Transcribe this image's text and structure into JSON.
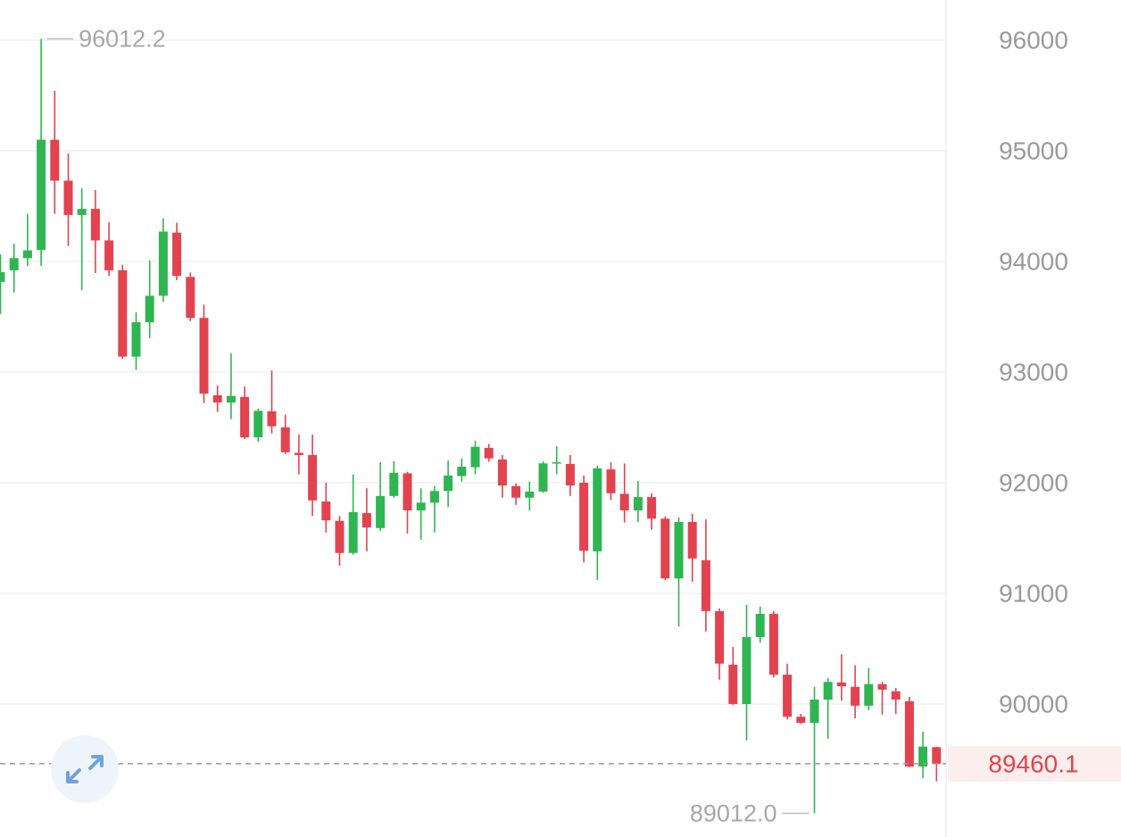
{
  "chart_data": {
    "type": "candlestick",
    "open": [
      93815,
      93920,
      94030,
      94105,
      95100,
      94730,
      94420,
      94475,
      94190,
      93920,
      93140,
      93450,
      93690,
      94260,
      93860,
      93490,
      92790,
      92725,
      92775,
      92410,
      92645,
      92500,
      92270,
      92250,
      91830,
      91655,
      91365,
      91725,
      91590,
      91880,
      92085,
      91750,
      91820,
      91925,
      92060,
      92140,
      92315,
      92210,
      91970,
      91865,
      91920,
      92175,
      92170,
      92000,
      91380,
      92120,
      91900,
      91750,
      91870,
      91675,
      91135,
      91645,
      91300,
      90840,
      90355,
      90000,
      90605,
      90815,
      90265,
      89885,
      89830,
      90040,
      90195,
      90155,
      89985,
      90180,
      90115,
      90025,
      89435,
      89610
    ],
    "high": [
      94065,
      94160,
      94430,
      96012.2,
      95540,
      94975,
      94660,
      94645,
      94355,
      93970,
      93540,
      94010,
      94390,
      94350,
      93900,
      93610,
      92880,
      93170,
      92870,
      92670,
      93015,
      92615,
      92435,
      92435,
      92000,
      91700,
      92075,
      91950,
      92185,
      92195,
      92100,
      91950,
      91970,
      92200,
      92220,
      92380,
      92350,
      92250,
      91995,
      92010,
      92195,
      92330,
      92250,
      92065,
      92155,
      92185,
      92175,
      92015,
      91905,
      91695,
      91685,
      91720,
      91670,
      90865,
      90515,
      90895,
      90880,
      90840,
      90365,
      89910,
      90155,
      90235,
      90450,
      90350,
      90325,
      90200,
      90145,
      90065,
      89750,
      89615
    ],
    "low": [
      93524,
      93720,
      93960,
      93960,
      94430,
      94140,
      93740,
      93895,
      93870,
      93120,
      93020,
      93305,
      93635,
      93830,
      93460,
      92720,
      92640,
      92575,
      92395,
      92370,
      92445,
      92260,
      92075,
      91700,
      91550,
      91250,
      91350,
      91380,
      91565,
      91865,
      91540,
      91485,
      91550,
      91780,
      92010,
      92075,
      92190,
      91865,
      91800,
      91750,
      91910,
      92075,
      91880,
      91280,
      91120,
      91845,
      91640,
      91645,
      91575,
      91120,
      90700,
      91105,
      90655,
      90220,
      89990,
      89670,
      90555,
      90240,
      89860,
      89820,
      89012,
      89685,
      90030,
      89870,
      89945,
      89905,
      89910,
      89430,
      89330,
      89300
    ],
    "close": [
      93903,
      94030,
      94100,
      95100,
      94730,
      94420,
      94475,
      94190,
      93920,
      93140,
      93450,
      93690,
      94270,
      93870,
      93490,
      92805,
      92725,
      92785,
      92410,
      92650,
      92510,
      92275,
      92250,
      91840,
      91660,
      91365,
      91735,
      91595,
      91880,
      92090,
      91750,
      91820,
      91925,
      92065,
      92145,
      92325,
      92220,
      91975,
      91865,
      91920,
      92175,
      92185,
      91975,
      91385,
      92130,
      91905,
      91750,
      91870,
      91675,
      91135,
      91645,
      91315,
      90840,
      90365,
      90000,
      90605,
      90815,
      90265,
      89885,
      89830,
      90040,
      90200,
      90160,
      89985,
      90180,
      90130,
      90040,
      89435,
      89615,
      89460.1
    ],
    "up_color": "#2fb552",
    "down_color": "#e2434f",
    "ylim": [
      88798,
      96363
    ],
    "yticks": [
      90000,
      91000,
      92000,
      93000,
      94000,
      95000,
      96000
    ],
    "grid": true,
    "last_price": 89460.1,
    "extremes": {
      "max": 96012.2,
      "min": {
        "value": 89012.0,
        "label": "89012.0"
      }
    }
  }
}
